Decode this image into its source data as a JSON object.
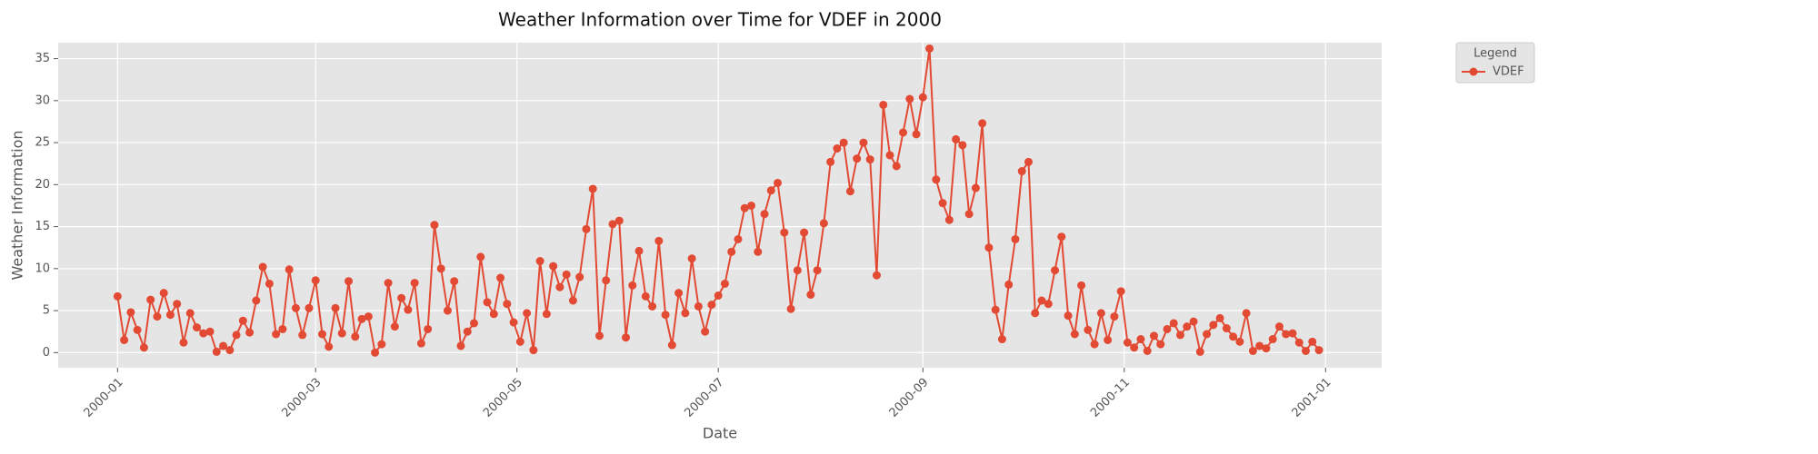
{
  "chart_data": {
    "type": "line",
    "title": "Weather Information over Time for VDEF in 2000",
    "x_label": "Date",
    "y_label": "Weather Information",
    "x": [
      0,
      2,
      4,
      6,
      8,
      10,
      12,
      14,
      16,
      18,
      20,
      22,
      24,
      26,
      28,
      30,
      32,
      34,
      36,
      38,
      40,
      42,
      44,
      46,
      48,
      50,
      52,
      54,
      56,
      58,
      60,
      62,
      64,
      66,
      68,
      70,
      72,
      74,
      76,
      78,
      80,
      82,
      84,
      86,
      88,
      90,
      92,
      94,
      96,
      98,
      100,
      102,
      104,
      106,
      108,
      110,
      112,
      114,
      116,
      118,
      120,
      122,
      124,
      126,
      128,
      130,
      132,
      134,
      136,
      138,
      140,
      142,
      144,
      146,
      148,
      150,
      152,
      154,
      156,
      158,
      160,
      162,
      164,
      166,
      168,
      170,
      172,
      174,
      176,
      178,
      180,
      182,
      184,
      186,
      188,
      190,
      192,
      194,
      196,
      198,
      200,
      202,
      204,
      206,
      208,
      210,
      212,
      214,
      216,
      218,
      220,
      222,
      224,
      226,
      228,
      230,
      232,
      234,
      236,
      238,
      240,
      242,
      244,
      246,
      248,
      250,
      252,
      254,
      256,
      258,
      260,
      262,
      264,
      266,
      268,
      270,
      272,
      274,
      276,
      278,
      280,
      282,
      284,
      286,
      288,
      290,
      292,
      294,
      296,
      298,
      300,
      302,
      304,
      306,
      308,
      310,
      312,
      314,
      316,
      318,
      320,
      322,
      324,
      326,
      328,
      330,
      332,
      334,
      336,
      338,
      340,
      342,
      344,
      346,
      348,
      350,
      352,
      354,
      356,
      358,
      360,
      362,
      364
    ],
    "series": [
      {
        "name": "VDEF",
        "color": "#e24a33",
        "values": [
          6.7,
          1.5,
          4.8,
          2.7,
          0.6,
          6.3,
          4.3,
          7.1,
          4.5,
          5.8,
          1.2,
          4.7,
          3.0,
          2.3,
          2.5,
          0.1,
          0.8,
          0.3,
          2.1,
          3.8,
          2.4,
          6.2,
          10.2,
          8.2,
          2.2,
          2.8,
          9.9,
          5.3,
          2.1,
          5.3,
          8.6,
          2.2,
          0.7,
          5.3,
          2.3,
          8.5,
          1.9,
          4.0,
          4.3,
          0.0,
          1.0,
          8.3,
          3.1,
          6.5,
          5.1,
          8.3,
          1.1,
          2.8,
          15.2,
          10.0,
          5.0,
          8.5,
          0.8,
          2.5,
          3.5,
          11.4,
          6.0,
          4.6,
          8.9,
          5.8,
          3.6,
          1.3,
          4.7,
          0.3,
          10.9,
          4.6,
          10.3,
          7.8,
          9.3,
          6.2,
          9.0,
          14.7,
          19.5,
          2.0,
          8.6,
          15.3,
          15.7,
          1.8,
          8.0,
          12.1,
          6.7,
          5.5,
          13.3,
          4.5,
          0.9,
          7.1,
          4.7,
          11.2,
          5.5,
          2.5,
          5.7,
          6.8,
          8.2,
          12.0,
          13.5,
          17.2,
          17.5,
          12.0,
          16.5,
          19.3,
          20.2,
          14.3,
          5.2,
          9.8,
          14.3,
          6.9,
          9.8,
          15.4,
          22.7,
          24.3,
          25.0,
          19.2,
          23.1,
          25.0,
          23.0,
          9.2,
          29.5,
          23.5,
          22.2,
          26.2,
          30.2,
          26.0,
          30.4,
          36.2,
          20.6,
          17.8,
          15.8,
          25.4,
          24.7,
          16.5,
          19.6,
          27.3,
          12.5,
          5.1,
          1.6,
          8.1,
          13.5,
          21.6,
          22.7,
          4.7,
          6.2,
          5.8,
          9.8,
          13.8,
          4.4,
          2.2,
          8.0,
          2.7,
          1.0,
          4.7,
          1.5,
          4.3,
          7.3,
          1.2,
          0.6,
          1.6,
          0.2,
          2.0,
          1.0,
          2.8,
          3.5,
          2.1,
          3.1,
          3.7,
          0.1,
          2.2,
          3.3,
          4.1,
          2.9,
          1.9,
          1.3,
          4.7,
          0.2,
          0.8,
          0.5,
          1.6,
          3.1,
          2.2,
          2.3,
          1.2,
          0.2,
          1.3,
          0.3
        ]
      }
    ],
    "xlim": [
      -18,
      383
    ],
    "xticks": [
      {
        "value": 0,
        "label": "2000-01"
      },
      {
        "value": 60,
        "label": "2000-03"
      },
      {
        "value": 121,
        "label": "2000-05"
      },
      {
        "value": 182,
        "label": "2000-07"
      },
      {
        "value": 244,
        "label": "2000-09"
      },
      {
        "value": 305,
        "label": "2000-11"
      },
      {
        "value": 366,
        "label": "2001-01"
      }
    ],
    "ylim": [
      -1.8,
      36.9
    ],
    "yticks": [
      0,
      5,
      10,
      15,
      20,
      25,
      30,
      35
    ],
    "grid": true,
    "legend": {
      "title": "Legend",
      "loc": "outside upper right"
    }
  }
}
